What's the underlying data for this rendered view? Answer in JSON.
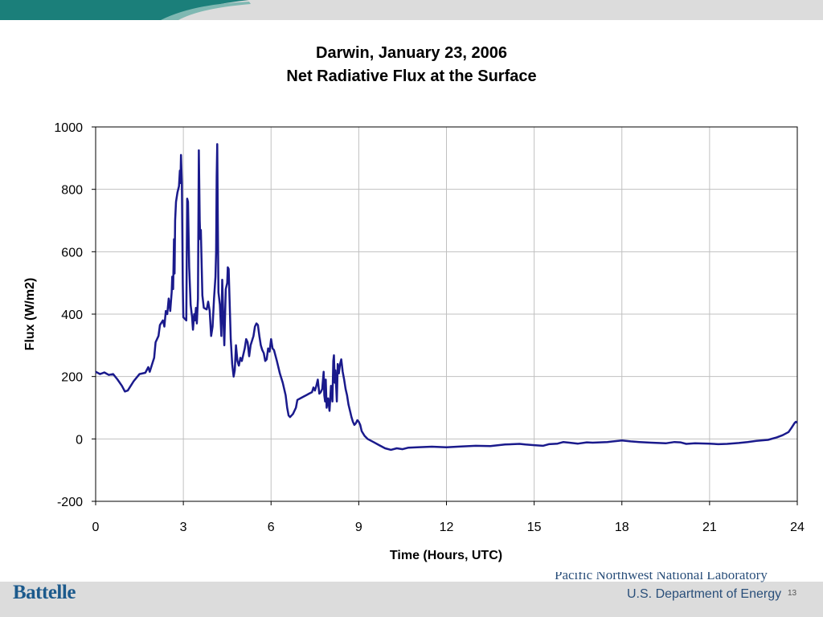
{
  "slide": {
    "title_line1": "Darwin, January 23, 2006",
    "title_line2": "Net Radiative Flux at the Surface",
    "page_number": "13"
  },
  "footer": {
    "left_logo": "Battelle",
    "right_logo_line1": "Pacific Northwest National Laboratory",
    "right_logo_line2": "U.S. Department of Energy"
  },
  "colors": {
    "series": "#1a1a8c",
    "grid": "#c0c0c0",
    "band": "#dcdcdc",
    "band_accent": "#1b7f7a",
    "logo": "#2a4f7a"
  },
  "chart_data": {
    "type": "line",
    "title": "Darwin, January 23, 2006 / Net Radiative Flux at the Surface",
    "xlabel": "Time (Hours, UTC)",
    "ylabel": "Flux (W/m2)",
    "xlim": [
      0,
      24
    ],
    "ylim": [
      -200,
      1000
    ],
    "xticks": [
      0,
      3,
      6,
      9,
      12,
      15,
      18,
      21,
      24
    ],
    "yticks": [
      -200,
      0,
      200,
      400,
      600,
      800,
      1000
    ],
    "grid": true,
    "legend": "none",
    "series": [
      {
        "values": [
          [
            0,
            215
          ],
          [
            0.15,
            208
          ],
          [
            0.3,
            213
          ],
          [
            0.45,
            205
          ],
          [
            0.6,
            208
          ],
          [
            0.75,
            190
          ],
          [
            0.9,
            170
          ],
          [
            1.0,
            152
          ],
          [
            1.1,
            155
          ],
          [
            1.3,
            185
          ],
          [
            1.5,
            208
          ],
          [
            1.7,
            212
          ],
          [
            1.8,
            230
          ],
          [
            1.85,
            215
          ],
          [
            1.95,
            245
          ],
          [
            2.0,
            260
          ],
          [
            2.05,
            310
          ],
          [
            2.15,
            330
          ],
          [
            2.2,
            365
          ],
          [
            2.3,
            380
          ],
          [
            2.35,
            360
          ],
          [
            2.4,
            410
          ],
          [
            2.45,
            400
          ],
          [
            2.5,
            450
          ],
          [
            2.55,
            410
          ],
          [
            2.6,
            470
          ],
          [
            2.62,
            520
          ],
          [
            2.65,
            480
          ],
          [
            2.68,
            640
          ],
          [
            2.7,
            530
          ],
          [
            2.72,
            700
          ],
          [
            2.75,
            760
          ],
          [
            2.8,
            790
          ],
          [
            2.85,
            810
          ],
          [
            2.88,
            860
          ],
          [
            2.9,
            820
          ],
          [
            2.92,
            910
          ],
          [
            2.95,
            820
          ],
          [
            2.98,
            500
          ],
          [
            3.0,
            390
          ],
          [
            3.05,
            385
          ],
          [
            3.1,
            380
          ],
          [
            3.13,
            770
          ],
          [
            3.16,
            760
          ],
          [
            3.2,
            550
          ],
          [
            3.25,
            430
          ],
          [
            3.3,
            390
          ],
          [
            3.33,
            350
          ],
          [
            3.37,
            400
          ],
          [
            3.4,
            380
          ],
          [
            3.43,
            420
          ],
          [
            3.46,
            370
          ],
          [
            3.5,
            450
          ],
          [
            3.53,
            925
          ],
          [
            3.56,
            700
          ],
          [
            3.58,
            640
          ],
          [
            3.6,
            670
          ],
          [
            3.62,
            580
          ],
          [
            3.65,
            460
          ],
          [
            3.7,
            420
          ],
          [
            3.8,
            415
          ],
          [
            3.85,
            440
          ],
          [
            3.9,
            410
          ],
          [
            3.95,
            330
          ],
          [
            4.0,
            360
          ],
          [
            4.05,
            450
          ],
          [
            4.1,
            520
          ],
          [
            4.12,
            600
          ],
          [
            4.14,
            840
          ],
          [
            4.16,
            945
          ],
          [
            4.18,
            700
          ],
          [
            4.2,
            470
          ],
          [
            4.25,
            430
          ],
          [
            4.3,
            330
          ],
          [
            4.33,
            510
          ],
          [
            4.37,
            380
          ],
          [
            4.4,
            300
          ],
          [
            4.45,
            480
          ],
          [
            4.5,
            500
          ],
          [
            4.52,
            550
          ],
          [
            4.55,
            545
          ],
          [
            4.58,
            450
          ],
          [
            4.62,
            320
          ],
          [
            4.67,
            240
          ],
          [
            4.72,
            200
          ],
          [
            4.76,
            220
          ],
          [
            4.8,
            300
          ],
          [
            4.85,
            250
          ],
          [
            4.9,
            235
          ],
          [
            4.95,
            260
          ],
          [
            5.0,
            250
          ],
          [
            5.1,
            290
          ],
          [
            5.15,
            320
          ],
          [
            5.2,
            310
          ],
          [
            5.25,
            265
          ],
          [
            5.3,
            300
          ],
          [
            5.4,
            330
          ],
          [
            5.45,
            360
          ],
          [
            5.5,
            370
          ],
          [
            5.55,
            365
          ],
          [
            5.6,
            330
          ],
          [
            5.65,
            300
          ],
          [
            5.7,
            285
          ],
          [
            5.75,
            275
          ],
          [
            5.8,
            250
          ],
          [
            5.85,
            255
          ],
          [
            5.9,
            290
          ],
          [
            5.95,
            280
          ],
          [
            6.0,
            320
          ],
          [
            6.05,
            290
          ],
          [
            6.1,
            285
          ],
          [
            6.2,
            250
          ],
          [
            6.3,
            210
          ],
          [
            6.4,
            180
          ],
          [
            6.5,
            140
          ],
          [
            6.55,
            100
          ],
          [
            6.6,
            75
          ],
          [
            6.65,
            70
          ],
          [
            6.7,
            75
          ],
          [
            6.75,
            80
          ],
          [
            6.85,
            100
          ],
          [
            6.9,
            125
          ],
          [
            7.0,
            130
          ],
          [
            7.1,
            135
          ],
          [
            7.2,
            140
          ],
          [
            7.3,
            145
          ],
          [
            7.4,
            150
          ],
          [
            7.45,
            165
          ],
          [
            7.5,
            155
          ],
          [
            7.55,
            170
          ],
          [
            7.6,
            190
          ],
          [
            7.65,
            145
          ],
          [
            7.7,
            150
          ],
          [
            7.75,
            160
          ],
          [
            7.8,
            215
          ],
          [
            7.82,
            140
          ],
          [
            7.85,
            120
          ],
          [
            7.87,
            190
          ],
          [
            7.9,
            100
          ],
          [
            7.95,
            130
          ],
          [
            8.0,
            90
          ],
          [
            8.05,
            170
          ],
          [
            8.1,
            120
          ],
          [
            8.13,
            250
          ],
          [
            8.15,
            268
          ],
          [
            8.18,
            180
          ],
          [
            8.2,
            220
          ],
          [
            8.25,
            120
          ],
          [
            8.28,
            240
          ],
          [
            8.32,
            210
          ],
          [
            8.36,
            240
          ],
          [
            8.4,
            255
          ],
          [
            8.45,
            215
          ],
          [
            8.5,
            190
          ],
          [
            8.55,
            160
          ],
          [
            8.6,
            140
          ],
          [
            8.65,
            110
          ],
          [
            8.7,
            90
          ],
          [
            8.75,
            70
          ],
          [
            8.8,
            55
          ],
          [
            8.85,
            45
          ],
          [
            8.9,
            50
          ],
          [
            8.95,
            60
          ],
          [
            9.0,
            55
          ],
          [
            9.05,
            45
          ],
          [
            9.1,
            25
          ],
          [
            9.2,
            10
          ],
          [
            9.3,
            0
          ],
          [
            9.5,
            -10
          ],
          [
            9.7,
            -20
          ],
          [
            9.9,
            -30
          ],
          [
            10.1,
            -35
          ],
          [
            10.3,
            -30
          ],
          [
            10.5,
            -33
          ],
          [
            10.7,
            -28
          ],
          [
            11.0,
            -27
          ],
          [
            11.5,
            -25
          ],
          [
            12.0,
            -27
          ],
          [
            12.5,
            -24
          ],
          [
            13.0,
            -22
          ],
          [
            13.5,
            -23
          ],
          [
            14.0,
            -18
          ],
          [
            14.5,
            -16
          ],
          [
            14.7,
            -18
          ],
          [
            15.0,
            -20
          ],
          [
            15.3,
            -22
          ],
          [
            15.5,
            -17
          ],
          [
            15.8,
            -15
          ],
          [
            16.0,
            -10
          ],
          [
            16.2,
            -12
          ],
          [
            16.5,
            -15
          ],
          [
            16.8,
            -11
          ],
          [
            17.0,
            -12
          ],
          [
            17.5,
            -10
          ],
          [
            18.0,
            -5
          ],
          [
            18.3,
            -8
          ],
          [
            18.6,
            -10
          ],
          [
            19.0,
            -12
          ],
          [
            19.5,
            -14
          ],
          [
            19.8,
            -10
          ],
          [
            20.0,
            -11
          ],
          [
            20.2,
            -16
          ],
          [
            20.5,
            -14
          ],
          [
            21.0,
            -15
          ],
          [
            21.3,
            -17
          ],
          [
            21.6,
            -16
          ],
          [
            22.0,
            -13
          ],
          [
            22.3,
            -10
          ],
          [
            22.6,
            -6
          ],
          [
            23.0,
            -3
          ],
          [
            23.3,
            5
          ],
          [
            23.5,
            12
          ],
          [
            23.7,
            22
          ],
          [
            23.8,
            35
          ],
          [
            23.9,
            50
          ],
          [
            23.95,
            55
          ],
          [
            24.0,
            52
          ]
        ]
      }
    ]
  }
}
